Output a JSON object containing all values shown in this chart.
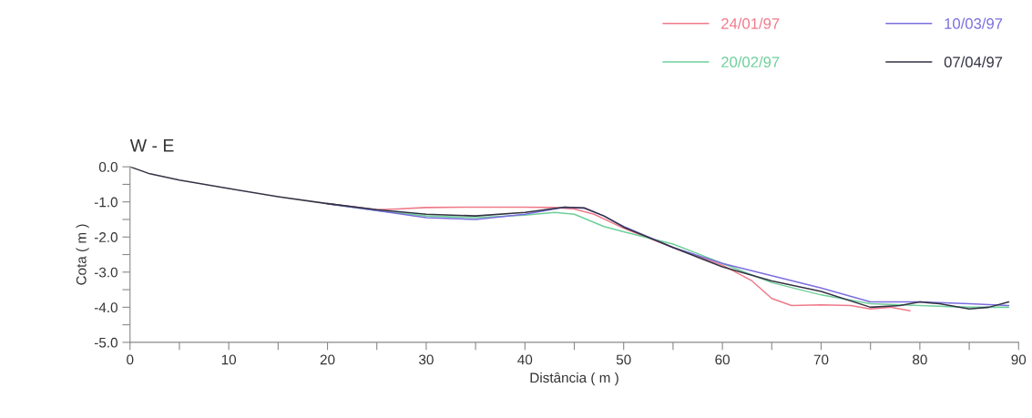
{
  "chart_data": {
    "type": "line",
    "title": "W - E",
    "xlabel": "Distância ( m )",
    "ylabel": "Cota ( m )",
    "xlim": [
      0,
      90
    ],
    "ylim": [
      -5,
      0
    ],
    "xticks": [
      0,
      {
        "value": 5,
        "label": null
      },
      10,
      {
        "value": 15,
        "label": null
      },
      20,
      {
        "value": 25,
        "label": null
      },
      30,
      {
        "value": 35,
        "label": null
      },
      40,
      {
        "value": 45,
        "label": null
      },
      50,
      {
        "value": 55,
        "label": null
      },
      60,
      {
        "value": 65,
        "label": null
      },
      70,
      {
        "value": 75,
        "label": null
      },
      80,
      {
        "value": 85,
        "label": null
      },
      90
    ],
    "yticks": [
      {
        "value": 0,
        "label": "0.0"
      },
      {
        "value": -0.5,
        "label": null
      },
      {
        "value": -1,
        "label": "-1.0"
      },
      {
        "value": -1.5,
        "label": null
      },
      {
        "value": -2,
        "label": "-2.0"
      },
      {
        "value": -2.5,
        "label": null
      },
      {
        "value": -3,
        "label": "-3.0"
      },
      {
        "value": -3.5,
        "label": null
      },
      {
        "value": -4,
        "label": "-4.0"
      },
      {
        "value": -4.5,
        "label": null
      },
      {
        "value": -5,
        "label": "-5.0"
      }
    ],
    "grid": false,
    "legend": "top right",
    "line_style": "solid",
    "marker": "none",
    "series": [
      {
        "name": "24/01/97",
        "color": "#f07a8a",
        "x": [
          20,
          25,
          27,
          30,
          35,
          40,
          43,
          45,
          47,
          50,
          55,
          60,
          63,
          65,
          67,
          70,
          73,
          75,
          77,
          79
        ],
        "values": [
          -1.05,
          -1.22,
          -1.2,
          -1.16,
          -1.15,
          -1.15,
          -1.16,
          -1.2,
          -1.35,
          -1.75,
          -2.3,
          -2.8,
          -3.25,
          -3.75,
          -3.95,
          -3.93,
          -3.95,
          -4.05,
          -4.0,
          -4.1
        ]
      },
      {
        "name": "20/02/97",
        "color": "#6fcf9a",
        "x": [
          20,
          25,
          30,
          35,
          40,
          43,
          45,
          48,
          50,
          55,
          60,
          65,
          70,
          75,
          80,
          85,
          89
        ],
        "values": [
          -1.05,
          -1.25,
          -1.4,
          -1.45,
          -1.38,
          -1.3,
          -1.35,
          -1.7,
          -1.85,
          -2.2,
          -2.75,
          -3.3,
          -3.65,
          -3.9,
          -3.95,
          -4.0,
          -4.0
        ]
      },
      {
        "name": "10/03/97",
        "color": "#7b6ee0",
        "x": [
          20,
          25,
          30,
          35,
          40,
          44,
          46,
          48,
          50,
          55,
          60,
          65,
          70,
          75,
          80,
          85,
          89
        ],
        "values": [
          -1.05,
          -1.25,
          -1.45,
          -1.5,
          -1.35,
          -1.15,
          -1.18,
          -1.4,
          -1.7,
          -2.3,
          -2.75,
          -3.1,
          -3.45,
          -3.85,
          -3.85,
          -3.9,
          -3.95
        ]
      },
      {
        "name": "07/04/97",
        "color": "#333344",
        "x": [
          0,
          2,
          5,
          10,
          15,
          20,
          25,
          30,
          35,
          40,
          44,
          46,
          48,
          50,
          55,
          60,
          65,
          70,
          75,
          78,
          80,
          82,
          85,
          87,
          89
        ],
        "values": [
          0,
          -0.2,
          -0.38,
          -0.62,
          -0.85,
          -1.05,
          -1.22,
          -1.35,
          -1.4,
          -1.3,
          -1.15,
          -1.17,
          -1.4,
          -1.72,
          -2.3,
          -2.85,
          -3.25,
          -3.55,
          -4.0,
          -3.95,
          -3.85,
          -3.9,
          -4.05,
          -4.0,
          -3.85
        ]
      }
    ]
  }
}
